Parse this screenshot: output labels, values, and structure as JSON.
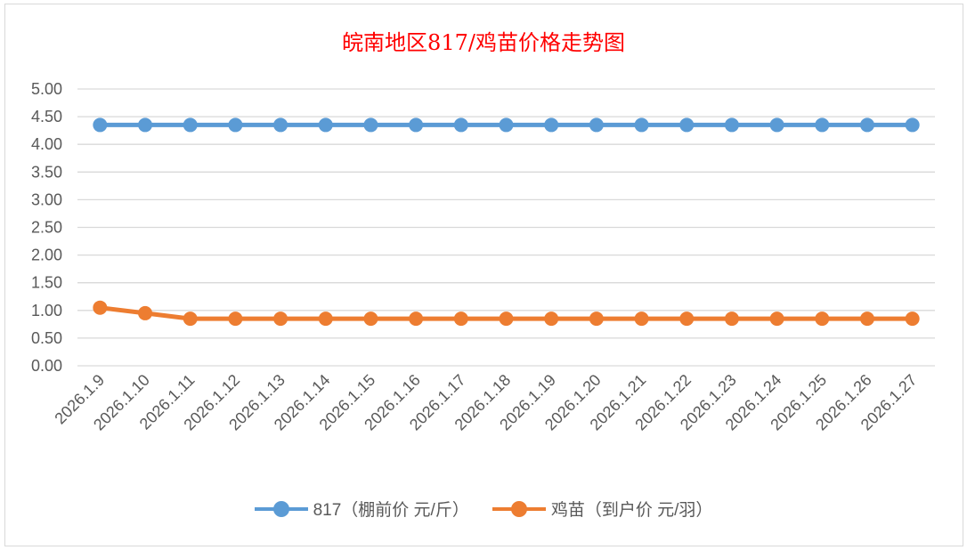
{
  "chart_data": {
    "type": "line",
    "title": "皖南地区817/鸡苗价格走势图",
    "x": [
      "2026.1.9",
      "2026.1.10",
      "2026.1.11",
      "2026.1.12",
      "2026.1.13",
      "2026.1.14",
      "2026.1.15",
      "2026.1.16",
      "2026.1.17",
      "2026.1.18",
      "2026.1.19",
      "2026.1.20",
      "2026.1.21",
      "2026.1.22",
      "2026.1.23",
      "2026.1.24",
      "2026.1.25",
      "2026.1.26",
      "2026.1.27"
    ],
    "yticks": [
      "0.00",
      "0.50",
      "1.00",
      "1.50",
      "2.00",
      "2.50",
      "3.00",
      "3.50",
      "4.00",
      "4.50",
      "5.00"
    ],
    "ylim": [
      0,
      5
    ],
    "grid": true,
    "legend_position": "bottom",
    "series": [
      {
        "name": "817（棚前价 元/斤）",
        "color": "#5b9bd5",
        "values": [
          4.35,
          4.35,
          4.35,
          4.35,
          4.35,
          4.35,
          4.35,
          4.35,
          4.35,
          4.35,
          4.35,
          4.35,
          4.35,
          4.35,
          4.35,
          4.35,
          4.35,
          4.35,
          4.35
        ]
      },
      {
        "name": "鸡苗（到户价 元/羽）",
        "color": "#ed7d31",
        "values": [
          1.05,
          0.95,
          0.85,
          0.85,
          0.85,
          0.85,
          0.85,
          0.85,
          0.85,
          0.85,
          0.85,
          0.85,
          0.85,
          0.85,
          0.85,
          0.85,
          0.85,
          0.85,
          0.85
        ]
      }
    ]
  }
}
